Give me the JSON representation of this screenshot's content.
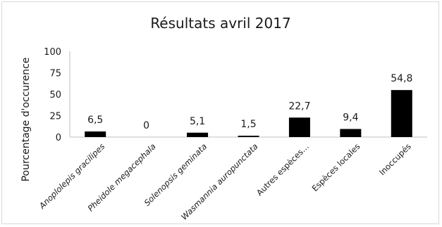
{
  "chart_data": {
    "type": "bar",
    "title": "Résultats avril 2017",
    "ylabel": "Pourcentage d'occurence",
    "xlabel": "",
    "ylim": [
      0,
      100
    ],
    "yticks": [
      "0",
      "25",
      "50",
      "75",
      "100"
    ],
    "categories": [
      "Anoplolepis gracilipes",
      "Pheidole megacephala",
      "Solenopsis geminata",
      "Wasmannia auropunctata",
      "Autres espèces…",
      "Espèces locales",
      "Inoccupés"
    ],
    "italic": [
      true,
      true,
      true,
      true,
      false,
      false,
      false
    ],
    "values": [
      6.5,
      0,
      5.1,
      1.5,
      22.7,
      9.4,
      54.8
    ],
    "value_labels": [
      "6,5",
      "0",
      "5,1",
      "1,5",
      "22,7",
      "9,4",
      "54,8"
    ],
    "bar_color": "#000000",
    "grid": false,
    "legend": "none"
  }
}
